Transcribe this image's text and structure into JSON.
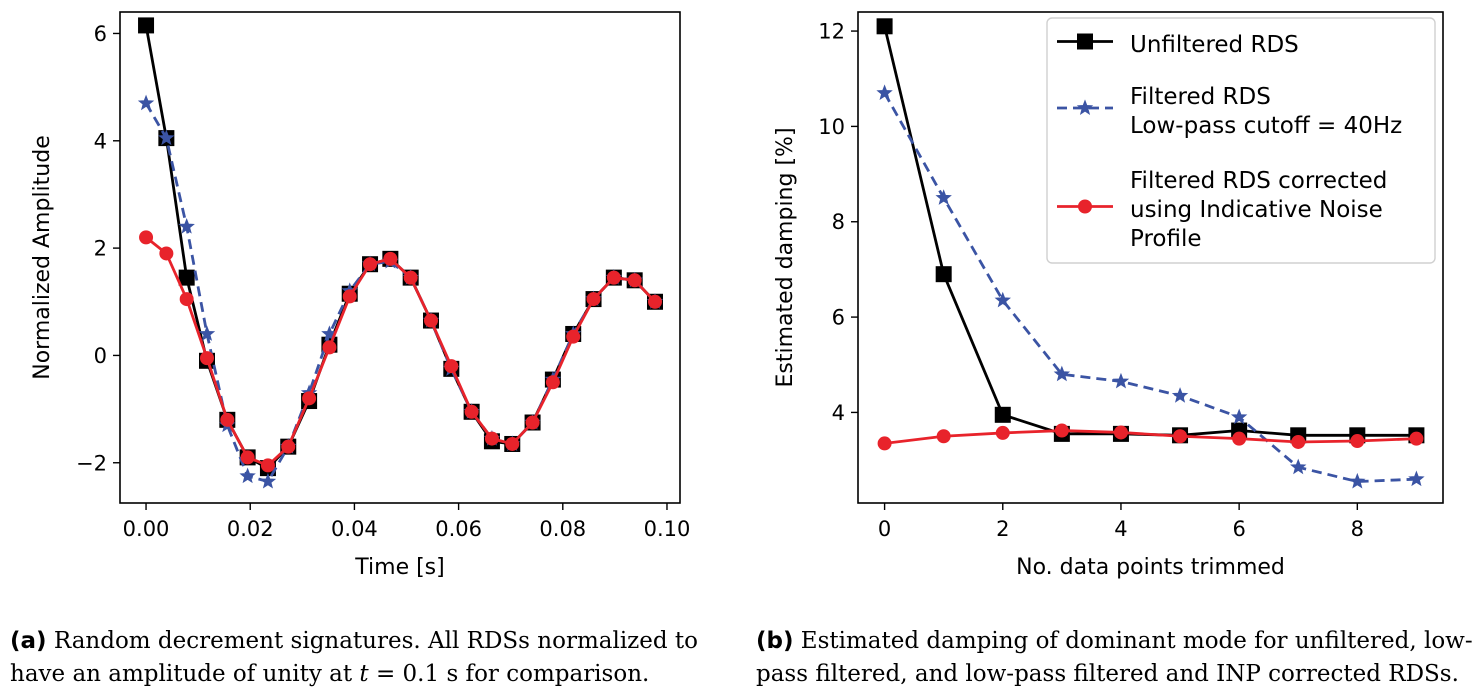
{
  "chart_data": [
    {
      "type": "line",
      "xlabel": "Time [s]",
      "ylabel": "Normalized Amplitude",
      "xlim": [
        -0.005,
        0.1025
      ],
      "ylim": [
        -2.75,
        6.4
      ],
      "xticks": [
        0.0,
        0.02,
        0.04,
        0.06,
        0.08,
        0.1
      ],
      "xtick_labels": [
        "0.00",
        "0.02",
        "0.04",
        "0.06",
        "0.08",
        "0.10"
      ],
      "yticks": [
        -2,
        0,
        2,
        4,
        6
      ],
      "ytick_labels": [
        "−2",
        "0",
        "2",
        "4",
        "6"
      ],
      "grid": false,
      "legend": "none",
      "series": [
        {
          "style": "solid",
          "color": "#000000",
          "marker": "square",
          "x": [
            0.0,
            0.0039,
            0.0078,
            0.0117,
            0.0156,
            0.0195,
            0.0234,
            0.0273,
            0.0313,
            0.0352,
            0.0391,
            0.043,
            0.0469,
            0.0508,
            0.0547,
            0.0586,
            0.0625,
            0.0664,
            0.0703,
            0.0742,
            0.0781,
            0.082,
            0.0859,
            0.0898,
            0.0938,
            0.0977
          ],
          "y": [
            6.15,
            4.05,
            1.45,
            -0.1,
            -1.2,
            -1.9,
            -2.1,
            -1.7,
            -0.85,
            0.2,
            1.15,
            1.7,
            1.8,
            1.45,
            0.65,
            -0.25,
            -1.05,
            -1.6,
            -1.65,
            -1.25,
            -0.45,
            0.4,
            1.05,
            1.45,
            1.4,
            1.0
          ]
        },
        {
          "style": "dashed",
          "color": "#3b54a4",
          "marker": "star",
          "x": [
            0.0,
            0.0039,
            0.0078,
            0.0117,
            0.0156,
            0.0195,
            0.0234,
            0.0273,
            0.0313,
            0.0352,
            0.0391,
            0.043,
            0.0469,
            0.0508,
            0.0547,
            0.0586,
            0.0625,
            0.0664,
            0.0703,
            0.0742,
            0.0781,
            0.082,
            0.0859,
            0.0898,
            0.0938,
            0.0977
          ],
          "y": [
            4.7,
            4.05,
            2.4,
            0.4,
            -1.3,
            -2.25,
            -2.35,
            -1.7,
            -0.7,
            0.4,
            1.2,
            1.7,
            1.75,
            1.45,
            0.65,
            -0.25,
            -1.05,
            -1.55,
            -1.65,
            -1.25,
            -0.45,
            0.4,
            1.05,
            1.45,
            1.4,
            1.0
          ]
        },
        {
          "style": "solid",
          "color": "#e8232b",
          "marker": "circle",
          "x": [
            0.0,
            0.0039,
            0.0078,
            0.0117,
            0.0156,
            0.0195,
            0.0234,
            0.0273,
            0.0313,
            0.0352,
            0.0391,
            0.043,
            0.0469,
            0.0508,
            0.0547,
            0.0586,
            0.0625,
            0.0664,
            0.0703,
            0.0742,
            0.0781,
            0.082,
            0.0859,
            0.0898,
            0.0938,
            0.0977
          ],
          "y": [
            2.2,
            1.9,
            1.05,
            -0.05,
            -1.2,
            -1.9,
            -2.05,
            -1.7,
            -0.8,
            0.15,
            1.1,
            1.7,
            1.8,
            1.45,
            0.65,
            -0.2,
            -1.05,
            -1.55,
            -1.65,
            -1.25,
            -0.5,
            0.35,
            1.05,
            1.45,
            1.4,
            1.0
          ]
        }
      ]
    },
    {
      "type": "line",
      "xlabel": "No. data points trimmed",
      "ylabel": "Estimated damping [%]",
      "xlim": [
        -0.45,
        9.45
      ],
      "ylim": [
        2.1,
        12.4
      ],
      "xticks": [
        0,
        2,
        4,
        6,
        8
      ],
      "xtick_labels": [
        "0",
        "2",
        "4",
        "6",
        "8"
      ],
      "yticks": [
        4,
        6,
        8,
        10,
        12
      ],
      "ytick_labels": [
        "4",
        "6",
        "8",
        "10",
        "12"
      ],
      "grid": false,
      "legend": "top-right",
      "series": [
        {
          "name": "Unfiltered RDS",
          "style": "solid",
          "color": "#000000",
          "marker": "square",
          "x": [
            0,
            1,
            2,
            3,
            4,
            5,
            6,
            7,
            8,
            9
          ],
          "y": [
            12.1,
            6.9,
            3.95,
            3.55,
            3.55,
            3.52,
            3.62,
            3.52,
            3.52,
            3.52
          ]
        },
        {
          "name": "Filtered RDS\nLow-pass cutoff = 40Hz",
          "style": "dashed",
          "color": "#3b54a4",
          "marker": "star",
          "x": [
            0,
            1,
            2,
            3,
            4,
            5,
            6,
            7,
            8,
            9
          ],
          "y": [
            10.7,
            8.5,
            6.35,
            4.8,
            4.65,
            4.35,
            3.9,
            2.85,
            2.55,
            2.6
          ]
        },
        {
          "name": "Filtered RDS corrected\nusing Indicative Noise\nProfile",
          "style": "solid",
          "color": "#e8232b",
          "marker": "circle",
          "x": [
            0,
            1,
            2,
            3,
            4,
            5,
            6,
            7,
            8,
            9
          ],
          "y": [
            3.35,
            3.5,
            3.57,
            3.62,
            3.58,
            3.5,
            3.45,
            3.38,
            3.4,
            3.45
          ]
        }
      ]
    }
  ],
  "captions": {
    "a": {
      "tag": "(a)",
      "text_1": " Random decrement signatures. All RDSs normalized to have an amplitude of unity at ",
      "var": "t",
      "text_2": " = 0.1 s for comparison."
    },
    "b": {
      "tag": "(b)",
      "text": " Estimated damping of dominant mode for unfiltered, low-pass filtered, and low-pass filtered and INP corrected RDSs."
    }
  }
}
